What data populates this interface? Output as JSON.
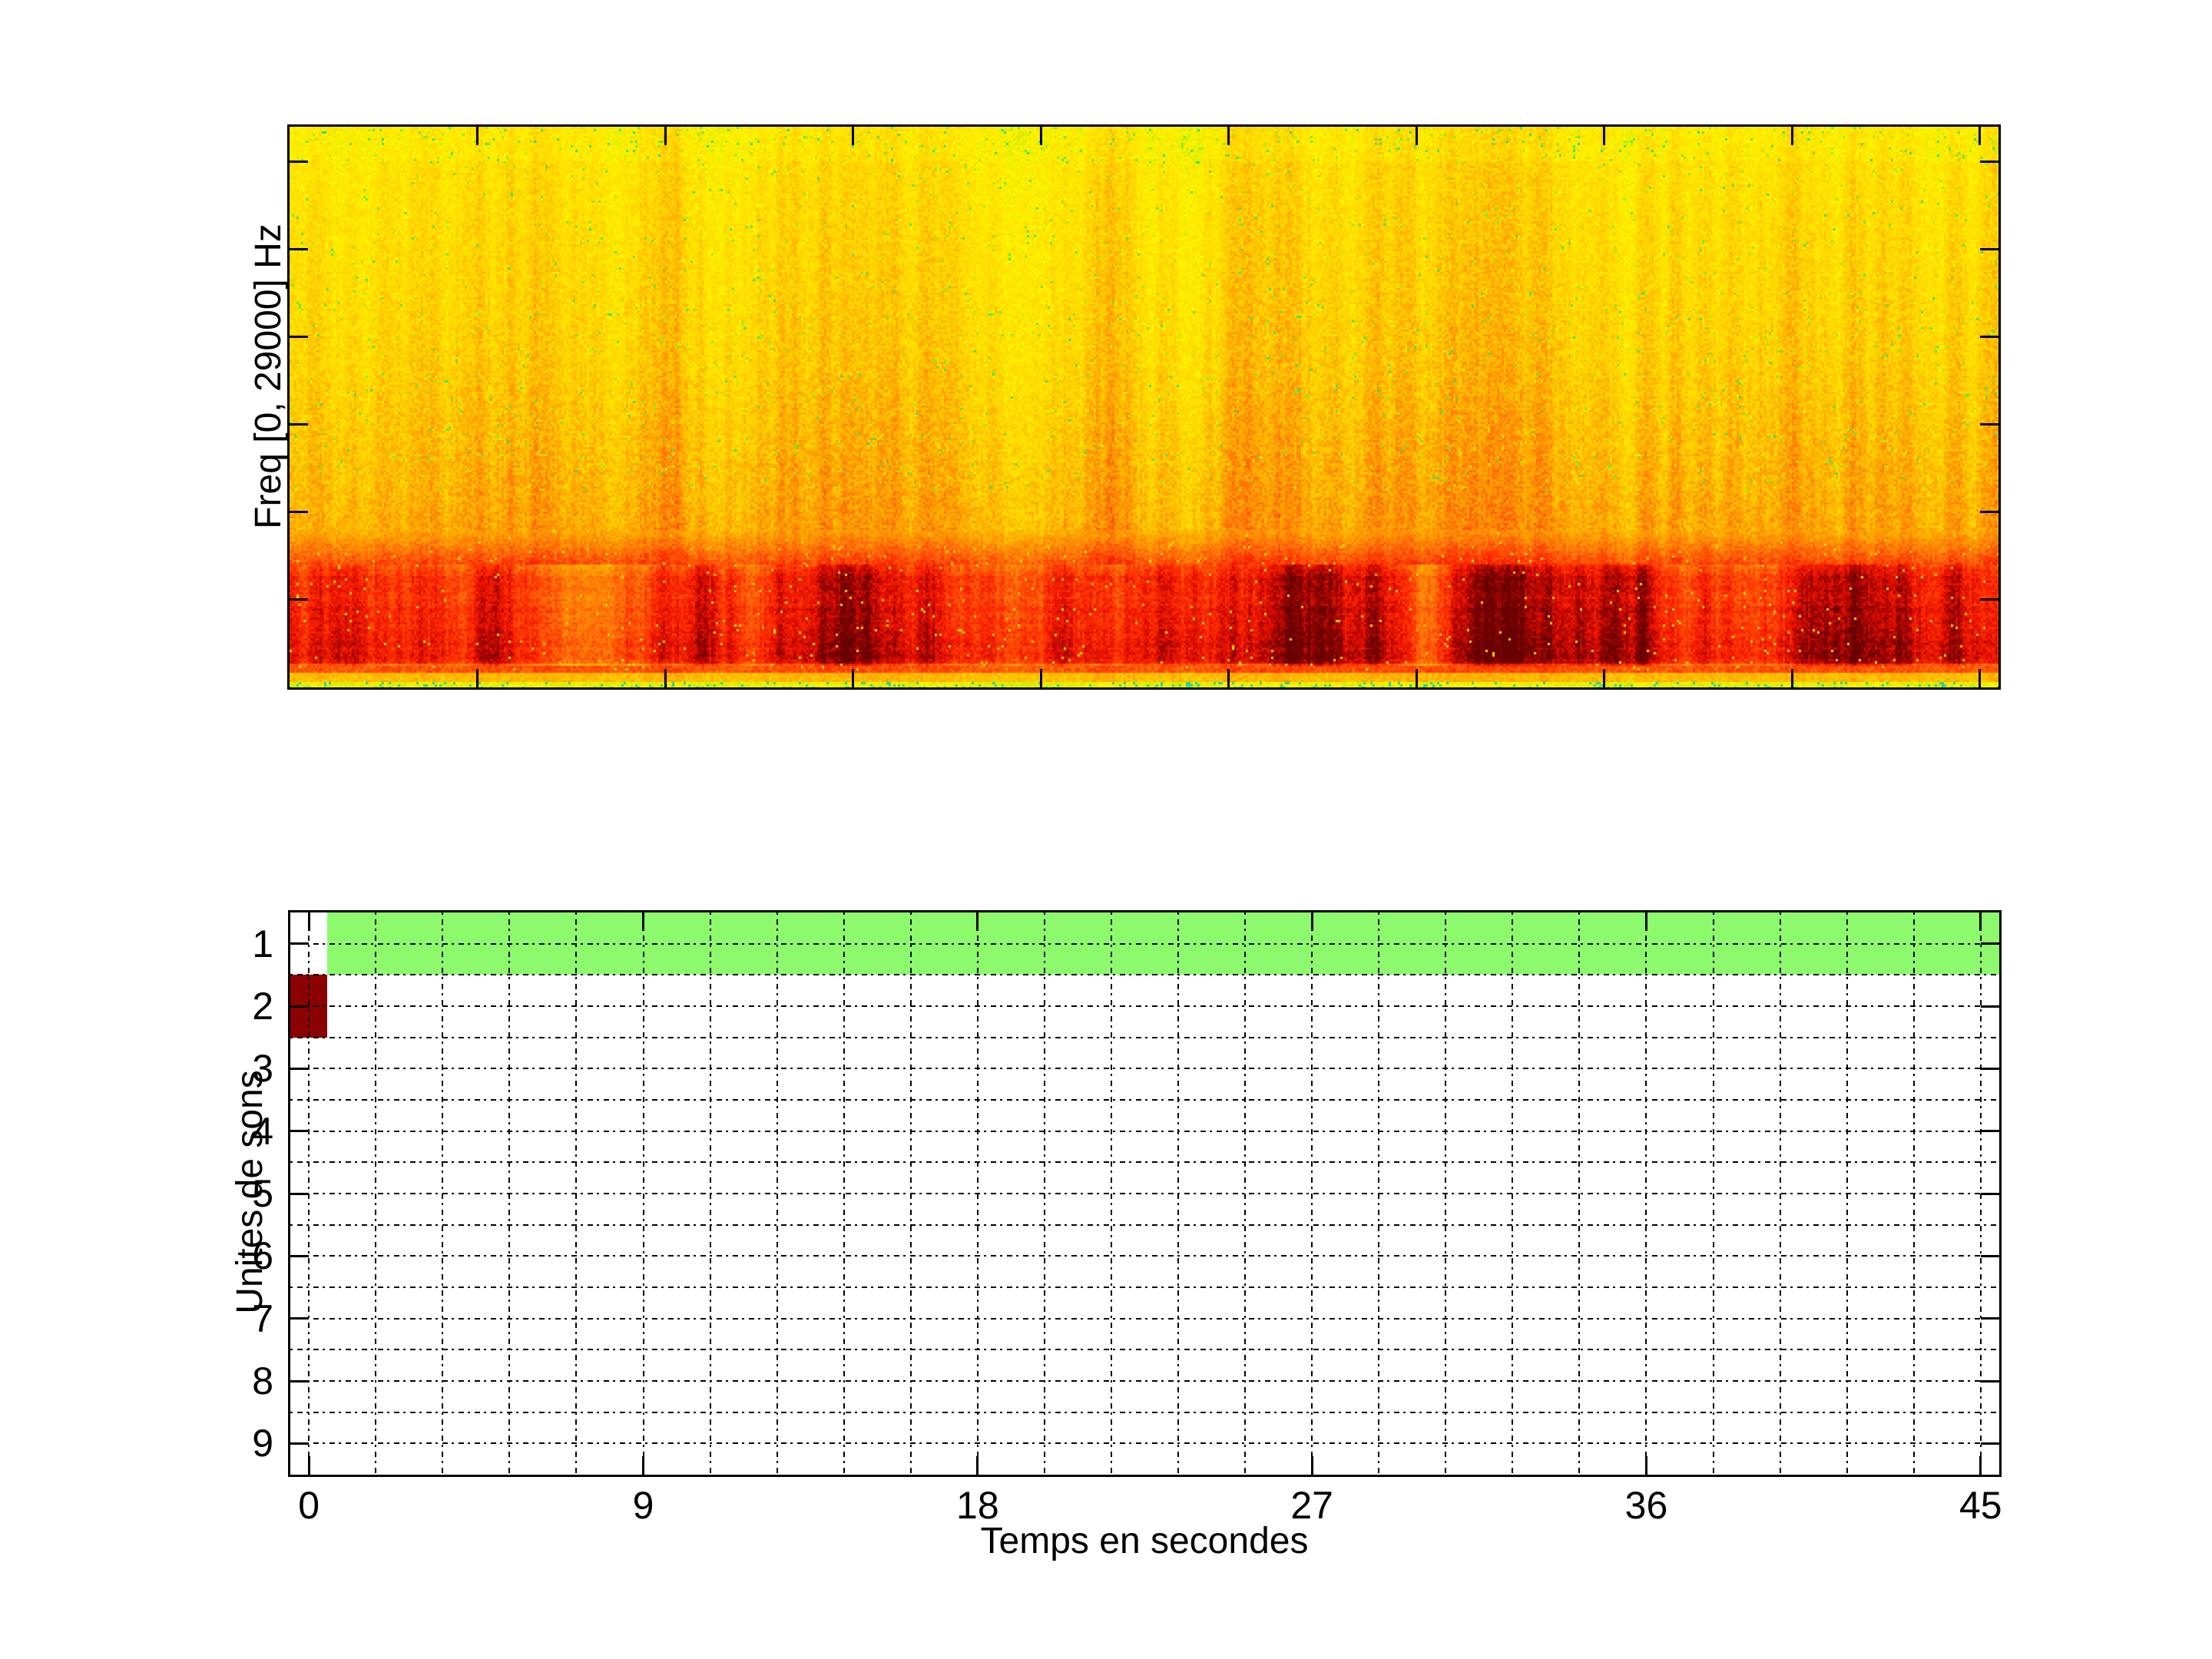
{
  "figure": {
    "background": "#ffffff",
    "text_color": "#000000"
  },
  "chart_data": [
    {
      "type": "heatmap",
      "name": "spectrogram",
      "title": "",
      "xlabel": "",
      "ylabel": "Freq [0, 29000] Hz",
      "freq_range_hz": [
        0,
        29000
      ],
      "time_range_s": [
        0,
        45.5
      ],
      "x_ticks_s": [
        5,
        10,
        15,
        20,
        25,
        30,
        35,
        40,
        45
      ],
      "y_tick_fractions_from_top": [
        0.0625,
        0.21875,
        0.375,
        0.53125,
        0.6875,
        0.84375
      ],
      "grid": "off",
      "tick_labels_shown": false,
      "colormap": [
        [
          0.0,
          "#00BEC8"
        ],
        [
          0.08,
          "#28E182"
        ],
        [
          0.16,
          "#82EB28"
        ],
        [
          0.26,
          "#D7EB00"
        ],
        [
          0.36,
          "#FFF300"
        ],
        [
          0.5,
          "#FFD200"
        ],
        [
          0.6,
          "#FFA500"
        ],
        [
          0.7,
          "#FF6E0A"
        ],
        [
          0.8,
          "#FF2D00"
        ],
        [
          0.88,
          "#E10F00"
        ],
        [
          0.94,
          "#A50500"
        ],
        [
          1.0,
          "#690000"
        ]
      ],
      "content_note": "broadband noise: yellow (mid energy) at high frequencies with sparse green/cyan speckles and orange vertical streaks, deepening to strong red band in the lowest quarter with dark maroon blotches, and a thin bright yellow-green line at 0 Hz"
    },
    {
      "type": "bar",
      "name": "sound-units-timeline",
      "title": "",
      "xlabel": "Temps en secondes",
      "ylabel": "Unites de sons",
      "xlim": [
        -0.5,
        45.5
      ],
      "ylim": [
        0.5,
        9.5
      ],
      "xticks": [
        0,
        9,
        18,
        27,
        36,
        45
      ],
      "yticks": [
        1,
        2,
        3,
        4,
        5,
        6,
        7,
        8,
        9
      ],
      "minor_x_step": 1.8,
      "minor_y_step": 0.5,
      "grid": "minor dotted",
      "legend": "none",
      "segments": [
        {
          "unit": 1,
          "start_s": 0.5,
          "end_s": 45.5,
          "color": "#8DFA6E"
        },
        {
          "unit": 2,
          "start_s": -0.5,
          "end_s": 0.5,
          "color": "#8B0202"
        }
      ]
    }
  ]
}
